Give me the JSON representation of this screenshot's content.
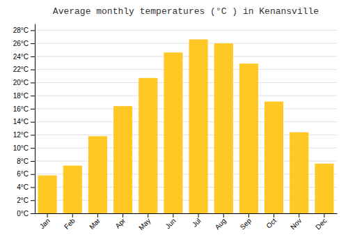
{
  "chart_data": {
    "type": "bar",
    "title": "Average monthly temperatures (°C ) in Kenansville",
    "categories": [
      "Jan",
      "Feb",
      "Mar",
      "Apr",
      "May",
      "Jun",
      "Jul",
      "Aug",
      "Sep",
      "Oct",
      "Nov",
      "Dec"
    ],
    "values": [
      5.8,
      7.3,
      11.8,
      16.4,
      20.7,
      24.6,
      26.6,
      26.0,
      22.9,
      17.1,
      12.4,
      7.6
    ],
    "color": "#FFC825",
    "ylim": [
      0,
      29
    ],
    "yticks": [
      {
        "value": 0,
        "label": "0°C"
      },
      {
        "value": 2,
        "label": "2°C"
      },
      {
        "value": 4,
        "label": "4°C"
      },
      {
        "value": 6,
        "label": "6°C"
      },
      {
        "value": 8,
        "label": "8°C"
      },
      {
        "value": 10,
        "label": "10°C"
      },
      {
        "value": 12,
        "label": "12°C"
      },
      {
        "value": 14,
        "label": "14°C"
      },
      {
        "value": 16,
        "label": "16°C"
      },
      {
        "value": 18,
        "label": "18°C"
      },
      {
        "value": 20,
        "label": "20°C"
      },
      {
        "value": 22,
        "label": "22°C"
      },
      {
        "value": 24,
        "label": "24°C"
      },
      {
        "value": 26,
        "label": "26°C"
      },
      {
        "value": 28,
        "label": "28°C"
      }
    ],
    "grid": true
  }
}
